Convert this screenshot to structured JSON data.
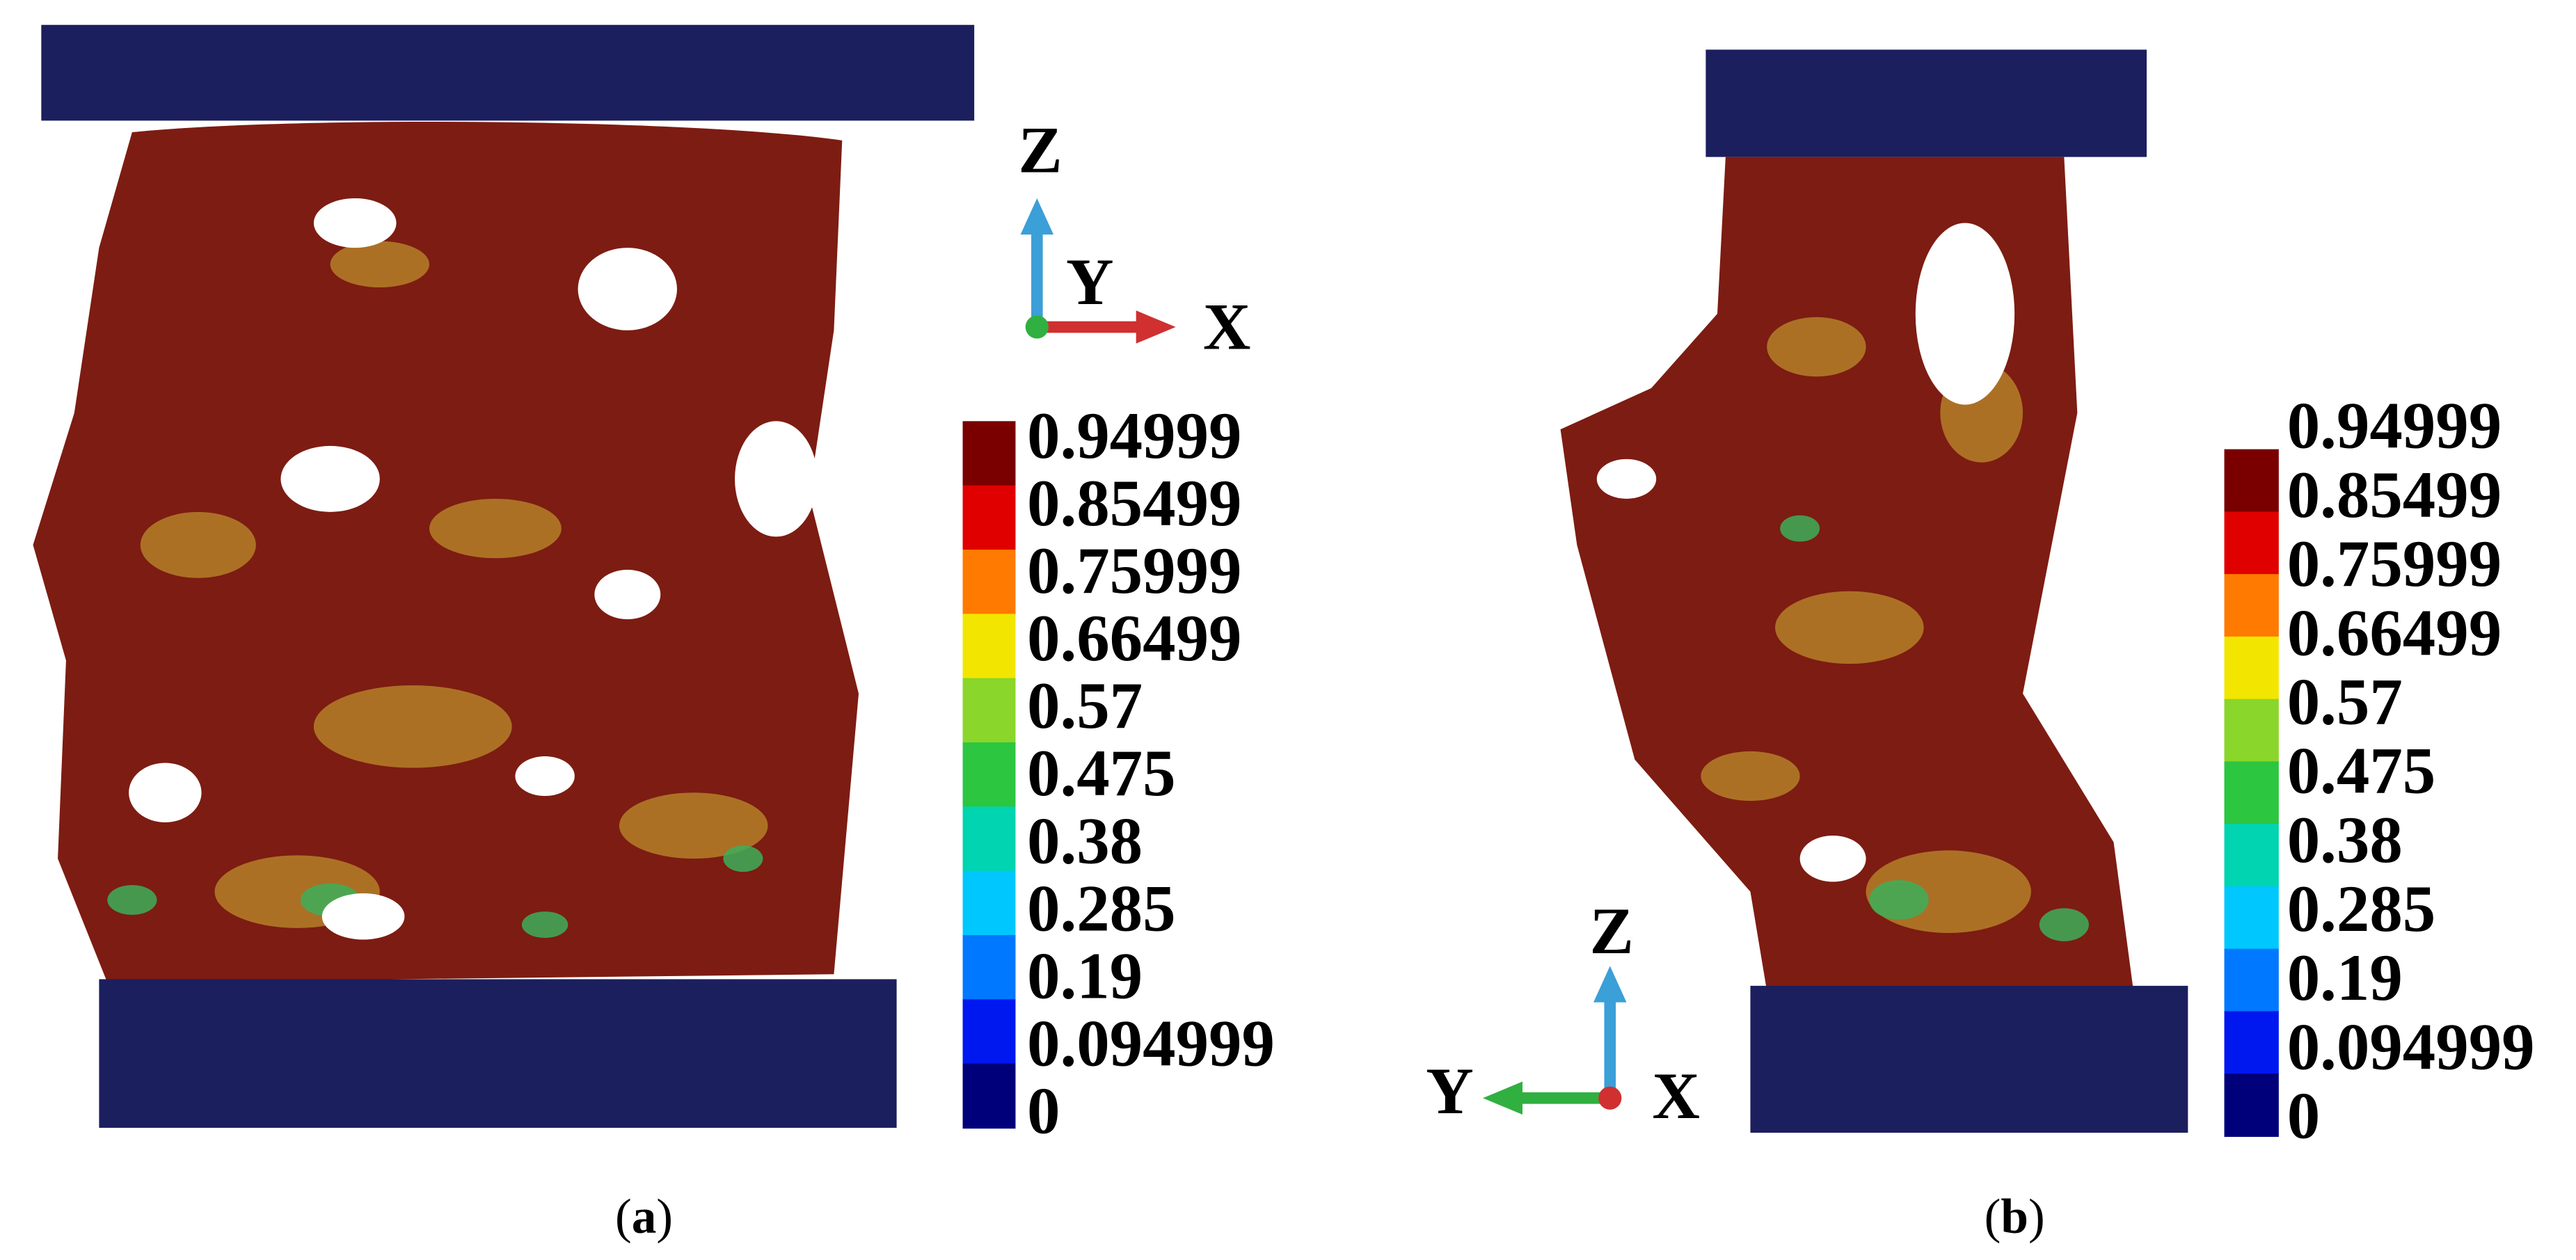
{
  "panels": [
    {
      "caption": [
        "(",
        "a",
        ")"
      ],
      "axes": {
        "z": "Z",
        "y": "Y",
        "x": "X"
      },
      "colorbar": {
        "labels": [
          0.94999,
          0.85499,
          0.75999,
          0.66499,
          0.57,
          0.475,
          0.38,
          0.285,
          0.19,
          0.094999,
          0
        ],
        "colors": [
          "#7a0000",
          "#e00000",
          "#ff7a00",
          "#f2e600",
          "#8ad62a",
          "#2cc640",
          "#00d4b0",
          "#00c8ff",
          "#0078ff",
          "#0018f0",
          "#00007a"
        ]
      }
    },
    {
      "caption": [
        "(",
        "b",
        ")"
      ],
      "axes": {
        "z": "Z",
        "y": "Y",
        "x": "X"
      },
      "colorbar": {
        "labels": [
          0.94999,
          0.85499,
          0.75999,
          0.66499,
          0.57,
          0.475,
          0.38,
          0.285,
          0.19,
          0.094999,
          0
        ],
        "colors": [
          "#7a0000",
          "#e00000",
          "#ff7a00",
          "#f2e600",
          "#8ad62a",
          "#2cc640",
          "#00d4b0",
          "#00c8ff",
          "#0078ff",
          "#0018f0",
          "#00007a"
        ]
      }
    }
  ]
}
